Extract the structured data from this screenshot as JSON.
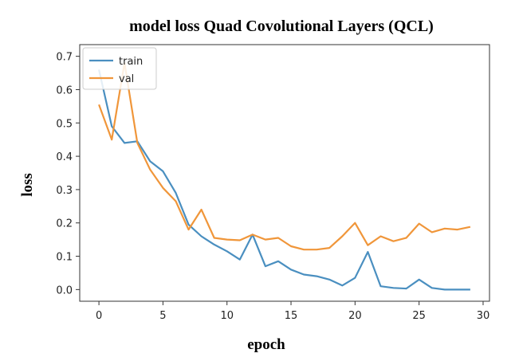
{
  "chart_data": {
    "type": "line",
    "title": "model loss Quad Covolutional Layers (QCL)",
    "xlabel": "epoch",
    "ylabel": "loss",
    "xlim": [
      -1.5,
      30.5
    ],
    "ylim": [
      -0.035,
      0.735
    ],
    "xticks": [
      0,
      5,
      10,
      15,
      20,
      25,
      30
    ],
    "yticks": [
      0.0,
      0.1,
      0.2,
      0.3,
      0.4,
      0.5,
      0.6,
      0.7
    ],
    "grid": false,
    "legend_position": "top-left",
    "x": [
      0,
      1,
      2,
      3,
      4,
      5,
      6,
      7,
      8,
      9,
      10,
      11,
      12,
      13,
      14,
      15,
      16,
      17,
      18,
      19,
      20,
      21,
      22,
      23,
      24,
      25,
      26,
      27,
      28,
      29
    ],
    "series": [
      {
        "name": "train",
        "color": "#4a8fc0",
        "values": [
          0.66,
          0.49,
          0.44,
          0.445,
          0.385,
          0.355,
          0.29,
          0.195,
          0.16,
          0.135,
          0.115,
          0.09,
          0.165,
          0.07,
          0.085,
          0.06,
          0.045,
          0.04,
          0.03,
          0.012,
          0.035,
          0.113,
          0.01,
          0.005,
          0.003,
          0.03,
          0.005,
          0.0,
          0.0,
          0.0
        ]
      },
      {
        "name": "val",
        "color": "#f0963a",
        "values": [
          0.555,
          0.45,
          0.68,
          0.44,
          0.36,
          0.305,
          0.265,
          0.18,
          0.24,
          0.155,
          0.15,
          0.148,
          0.165,
          0.15,
          0.155,
          0.13,
          0.12,
          0.12,
          0.125,
          0.16,
          0.2,
          0.133,
          0.16,
          0.145,
          0.155,
          0.198,
          0.172,
          0.183,
          0.18,
          0.188
        ]
      }
    ]
  }
}
